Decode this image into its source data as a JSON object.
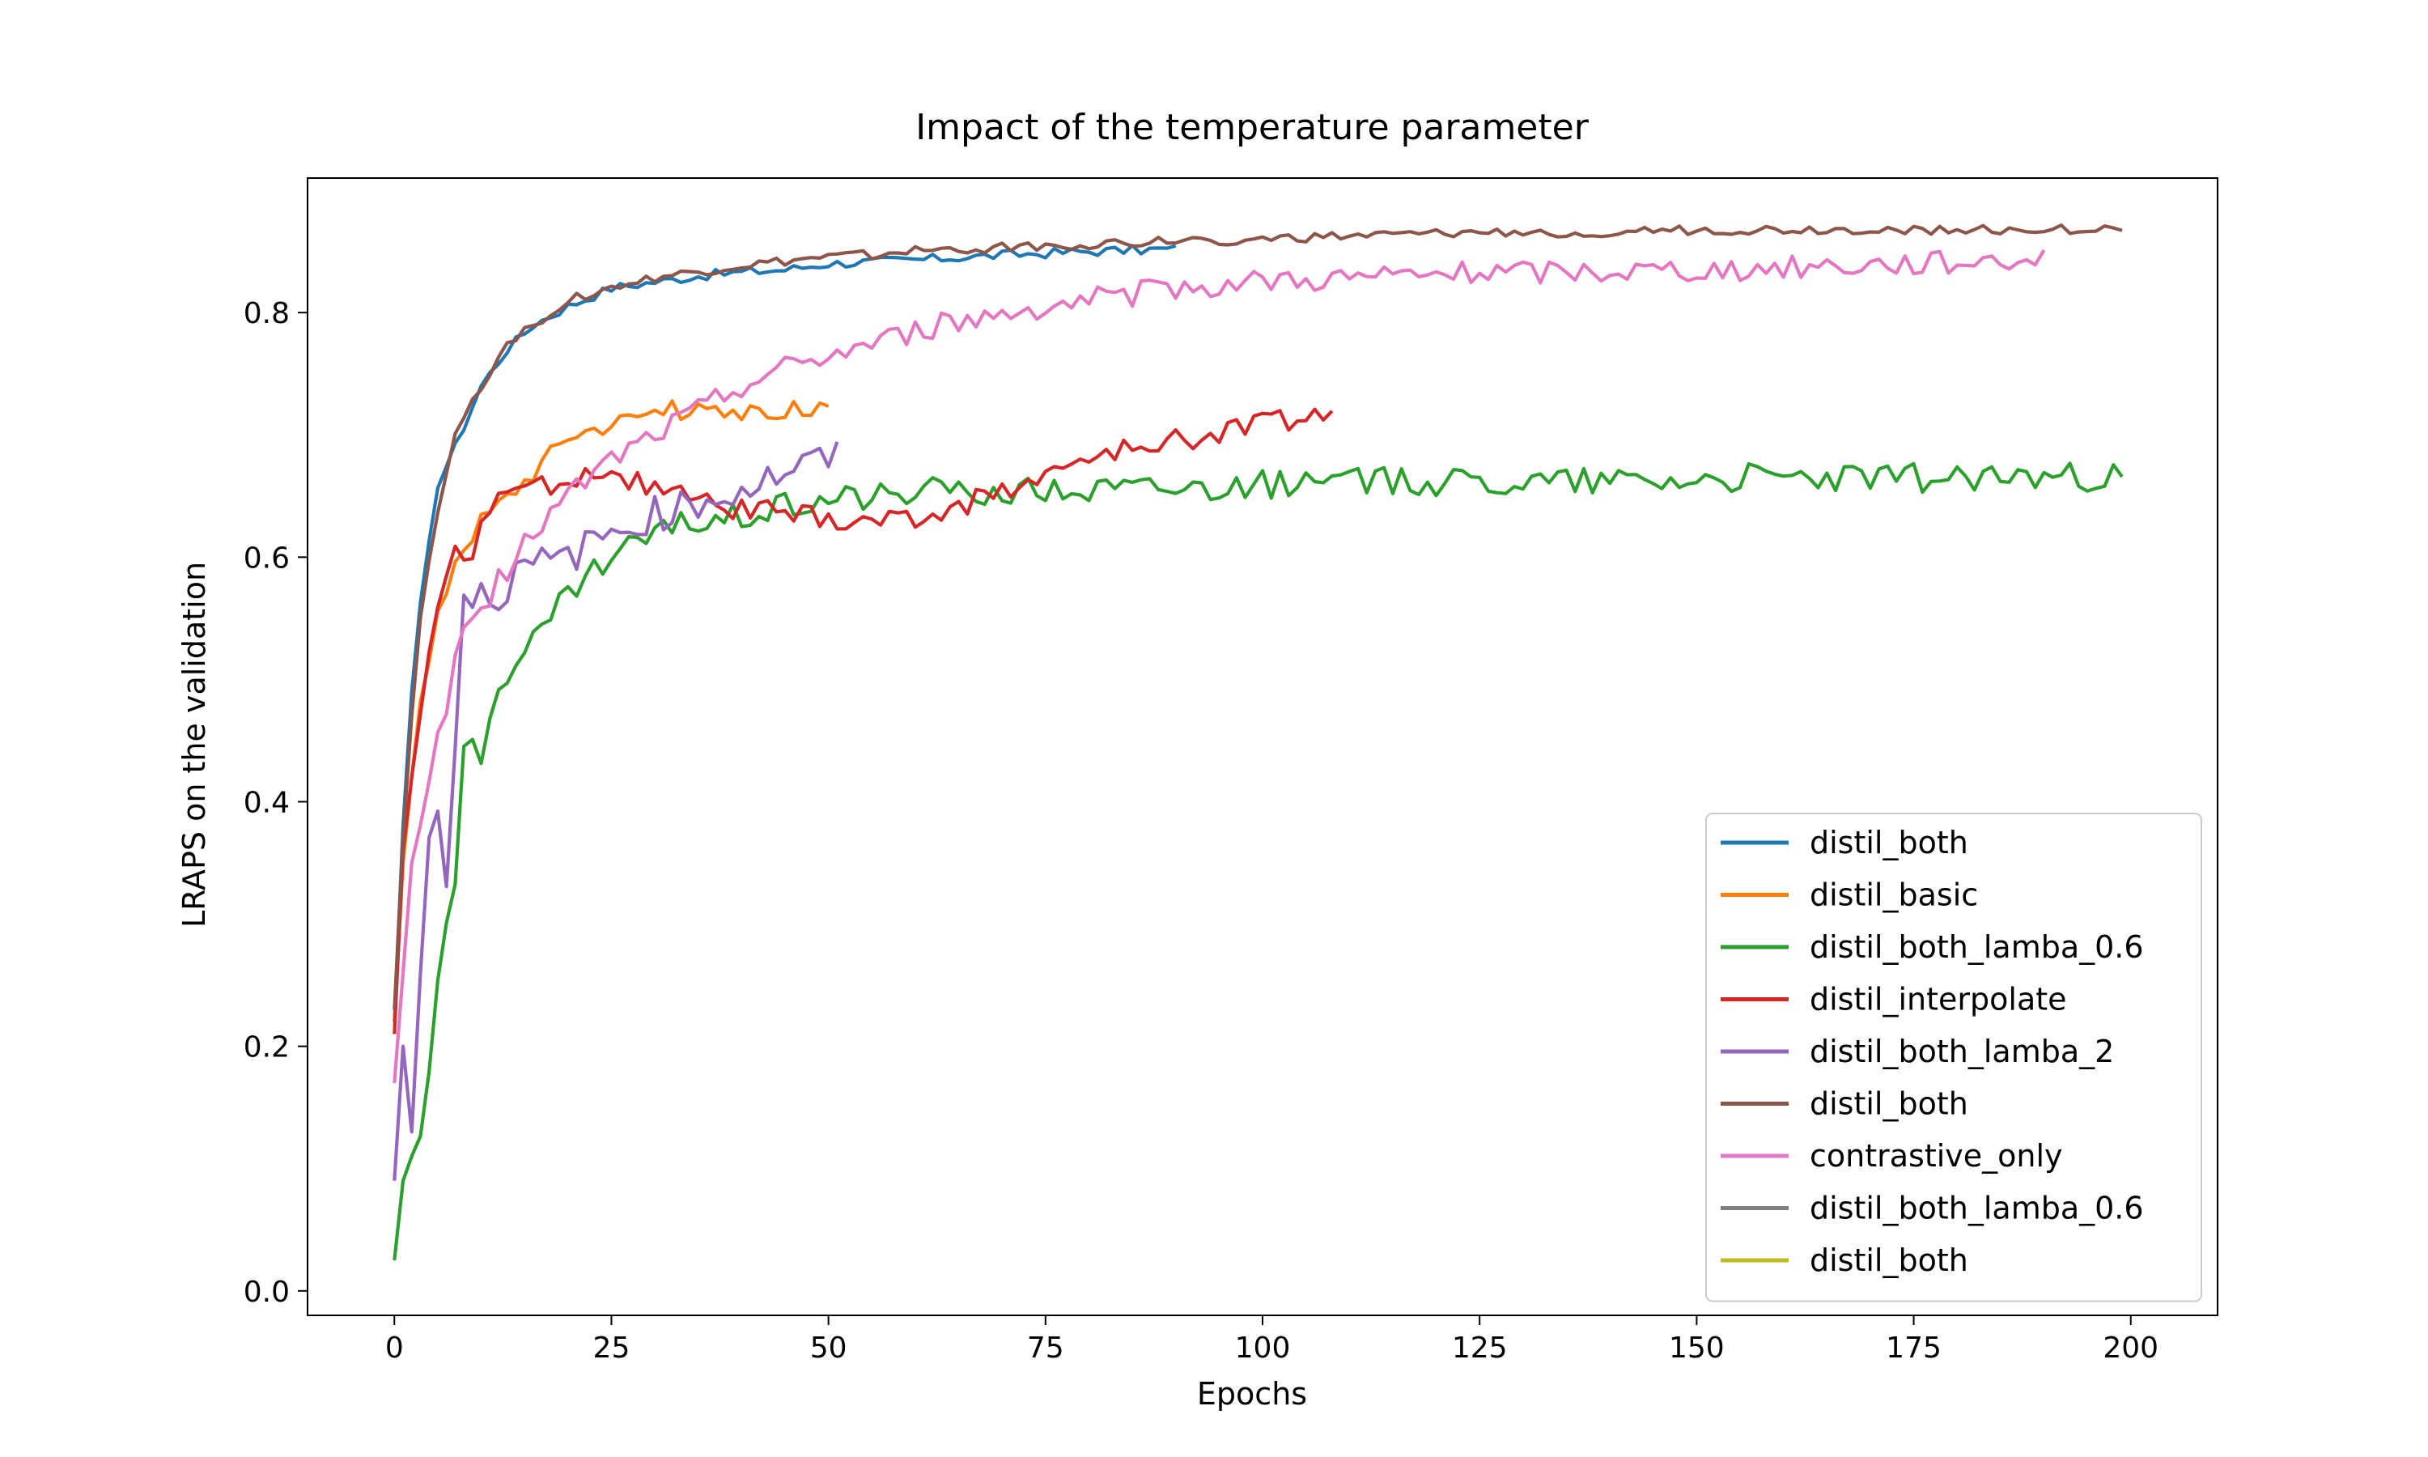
{
  "chart_data": {
    "type": "line",
    "title": "Impact of the temperature parameter",
    "xlabel": "Epochs",
    "ylabel": "LRAPS on the validation",
    "xlim": [
      -10,
      210
    ],
    "ylim": [
      -0.02,
      0.91
    ],
    "xticks": [
      0,
      25,
      50,
      75,
      100,
      125,
      150,
      175,
      200
    ],
    "yticks": [
      0.0,
      0.2,
      0.4,
      0.6,
      0.8
    ],
    "xtick_labels": [
      "0",
      "25",
      "50",
      "75",
      "100",
      "125",
      "150",
      "175",
      "200"
    ],
    "ytick_labels": [
      "0.0",
      "0.2",
      "0.4",
      "0.6",
      "0.8"
    ],
    "grid": false,
    "legend_position": "lower-right",
    "series": [
      {
        "name": "distil_both",
        "color": "#1f77b4",
        "x_end": 90,
        "anchors": [
          [
            0,
            0.22
          ],
          [
            1,
            0.38
          ],
          [
            2,
            0.49
          ],
          [
            3,
            0.56
          ],
          [
            5,
            0.66
          ],
          [
            7,
            0.69
          ],
          [
            10,
            0.74
          ],
          [
            13,
            0.77
          ],
          [
            16,
            0.79
          ],
          [
            20,
            0.805
          ],
          [
            25,
            0.82
          ],
          [
            30,
            0.825
          ],
          [
            35,
            0.83
          ],
          [
            40,
            0.833
          ],
          [
            45,
            0.835
          ],
          [
            50,
            0.84
          ],
          [
            60,
            0.843
          ],
          [
            70,
            0.847
          ],
          [
            80,
            0.85
          ],
          [
            90,
            0.852
          ]
        ],
        "noise": 0.004
      },
      {
        "name": "distil_basic",
        "color": "#ff7f0e",
        "x_end": 50,
        "anchors": [
          [
            0,
            0.22
          ],
          [
            1,
            0.35
          ],
          [
            2,
            0.42
          ],
          [
            3,
            0.48
          ],
          [
            5,
            0.55
          ],
          [
            7,
            0.6
          ],
          [
            10,
            0.63
          ],
          [
            13,
            0.65
          ],
          [
            16,
            0.67
          ],
          [
            20,
            0.7
          ],
          [
            25,
            0.71
          ],
          [
            30,
            0.72
          ],
          [
            35,
            0.72
          ],
          [
            40,
            0.715
          ],
          [
            45,
            0.72
          ],
          [
            50,
            0.72
          ]
        ],
        "noise": 0.008
      },
      {
        "name": "distil_both_lamba_0.6",
        "color": "#2ca02c",
        "x_end": 199,
        "anchors": [
          [
            0,
            0.025
          ],
          [
            1,
            0.09
          ],
          [
            3,
            0.13
          ],
          [
            5,
            0.25
          ],
          [
            7,
            0.33
          ],
          [
            8,
            0.45
          ],
          [
            10,
            0.44
          ],
          [
            12,
            0.5
          ],
          [
            15,
            0.52
          ],
          [
            20,
            0.57
          ],
          [
            25,
            0.6
          ],
          [
            30,
            0.62
          ],
          [
            40,
            0.635
          ],
          [
            50,
            0.65
          ],
          [
            70,
            0.655
          ],
          [
            100,
            0.66
          ],
          [
            150,
            0.665
          ],
          [
            199,
            0.665
          ]
        ],
        "noise": 0.012
      },
      {
        "name": "distil_interpolate",
        "color": "#d62728",
        "x_end": 108,
        "anchors": [
          [
            0,
            0.21
          ],
          [
            1,
            0.36
          ],
          [
            3,
            0.48
          ],
          [
            5,
            0.56
          ],
          [
            7,
            0.6
          ],
          [
            9,
            0.6
          ],
          [
            10,
            0.63
          ],
          [
            12,
            0.65
          ],
          [
            15,
            0.655
          ],
          [
            20,
            0.665
          ],
          [
            25,
            0.67
          ],
          [
            30,
            0.655
          ],
          [
            35,
            0.645
          ],
          [
            40,
            0.64
          ],
          [
            50,
            0.63
          ],
          [
            60,
            0.63
          ],
          [
            70,
            0.655
          ],
          [
            80,
            0.68
          ],
          [
            90,
            0.695
          ],
          [
            100,
            0.71
          ],
          [
            108,
            0.72
          ]
        ],
        "noise": 0.01
      },
      {
        "name": "distil_both_lamba_2",
        "color": "#9467bd",
        "x_end": 51,
        "anchors": [
          [
            0,
            0.09
          ],
          [
            1,
            0.2
          ],
          [
            2,
            0.13
          ],
          [
            3,
            0.25
          ],
          [
            4,
            0.38
          ],
          [
            5,
            0.4
          ],
          [
            6,
            0.33
          ],
          [
            7,
            0.45
          ],
          [
            8,
            0.57
          ],
          [
            10,
            0.57
          ],
          [
            12,
            0.57
          ],
          [
            15,
            0.59
          ],
          [
            20,
            0.6
          ],
          [
            25,
            0.62
          ],
          [
            30,
            0.635
          ],
          [
            35,
            0.645
          ],
          [
            40,
            0.655
          ],
          [
            45,
            0.67
          ],
          [
            50,
            0.68
          ]
        ],
        "noise": 0.015
      },
      {
        "name": "distil_both",
        "color": "#8c564b",
        "x_end": 199,
        "anchors": [
          [
            0,
            0.23
          ],
          [
            1,
            0.37
          ],
          [
            2,
            0.47
          ],
          [
            3,
            0.55
          ],
          [
            5,
            0.64
          ],
          [
            7,
            0.7
          ],
          [
            10,
            0.74
          ],
          [
            13,
            0.775
          ],
          [
            16,
            0.79
          ],
          [
            20,
            0.81
          ],
          [
            25,
            0.82
          ],
          [
            30,
            0.828
          ],
          [
            40,
            0.838
          ],
          [
            50,
            0.845
          ],
          [
            60,
            0.85
          ],
          [
            70,
            0.853
          ],
          [
            80,
            0.856
          ],
          [
            100,
            0.86
          ],
          [
            125,
            0.865
          ],
          [
            150,
            0.867
          ],
          [
            175,
            0.868
          ],
          [
            199,
            0.868
          ]
        ],
        "noise": 0.004
      },
      {
        "name": "contrastive_only",
        "color": "#e377c2",
        "x_end": 190,
        "anchors": [
          [
            0,
            0.17
          ],
          [
            2,
            0.35
          ],
          [
            4,
            0.42
          ],
          [
            6,
            0.48
          ],
          [
            8,
            0.54
          ],
          [
            10,
            0.56
          ],
          [
            13,
            0.59
          ],
          [
            16,
            0.62
          ],
          [
            20,
            0.65
          ],
          [
            25,
            0.68
          ],
          [
            30,
            0.7
          ],
          [
            35,
            0.72
          ],
          [
            40,
            0.74
          ],
          [
            45,
            0.755
          ],
          [
            50,
            0.765
          ],
          [
            55,
            0.775
          ],
          [
            60,
            0.785
          ],
          [
            70,
            0.8
          ],
          [
            80,
            0.81
          ],
          [
            90,
            0.82
          ],
          [
            100,
            0.826
          ],
          [
            125,
            0.832
          ],
          [
            150,
            0.835
          ],
          [
            175,
            0.84
          ],
          [
            190,
            0.845
          ]
        ],
        "noise": 0.01
      },
      {
        "name": "distil_both_lamba_0.6",
        "color": "#7f7f7f",
        "x_end": null,
        "anchors": [],
        "noise": 0
      },
      {
        "name": "distil_both",
        "color": "#bcbd22",
        "x_end": null,
        "anchors": [],
        "noise": 0
      }
    ]
  }
}
